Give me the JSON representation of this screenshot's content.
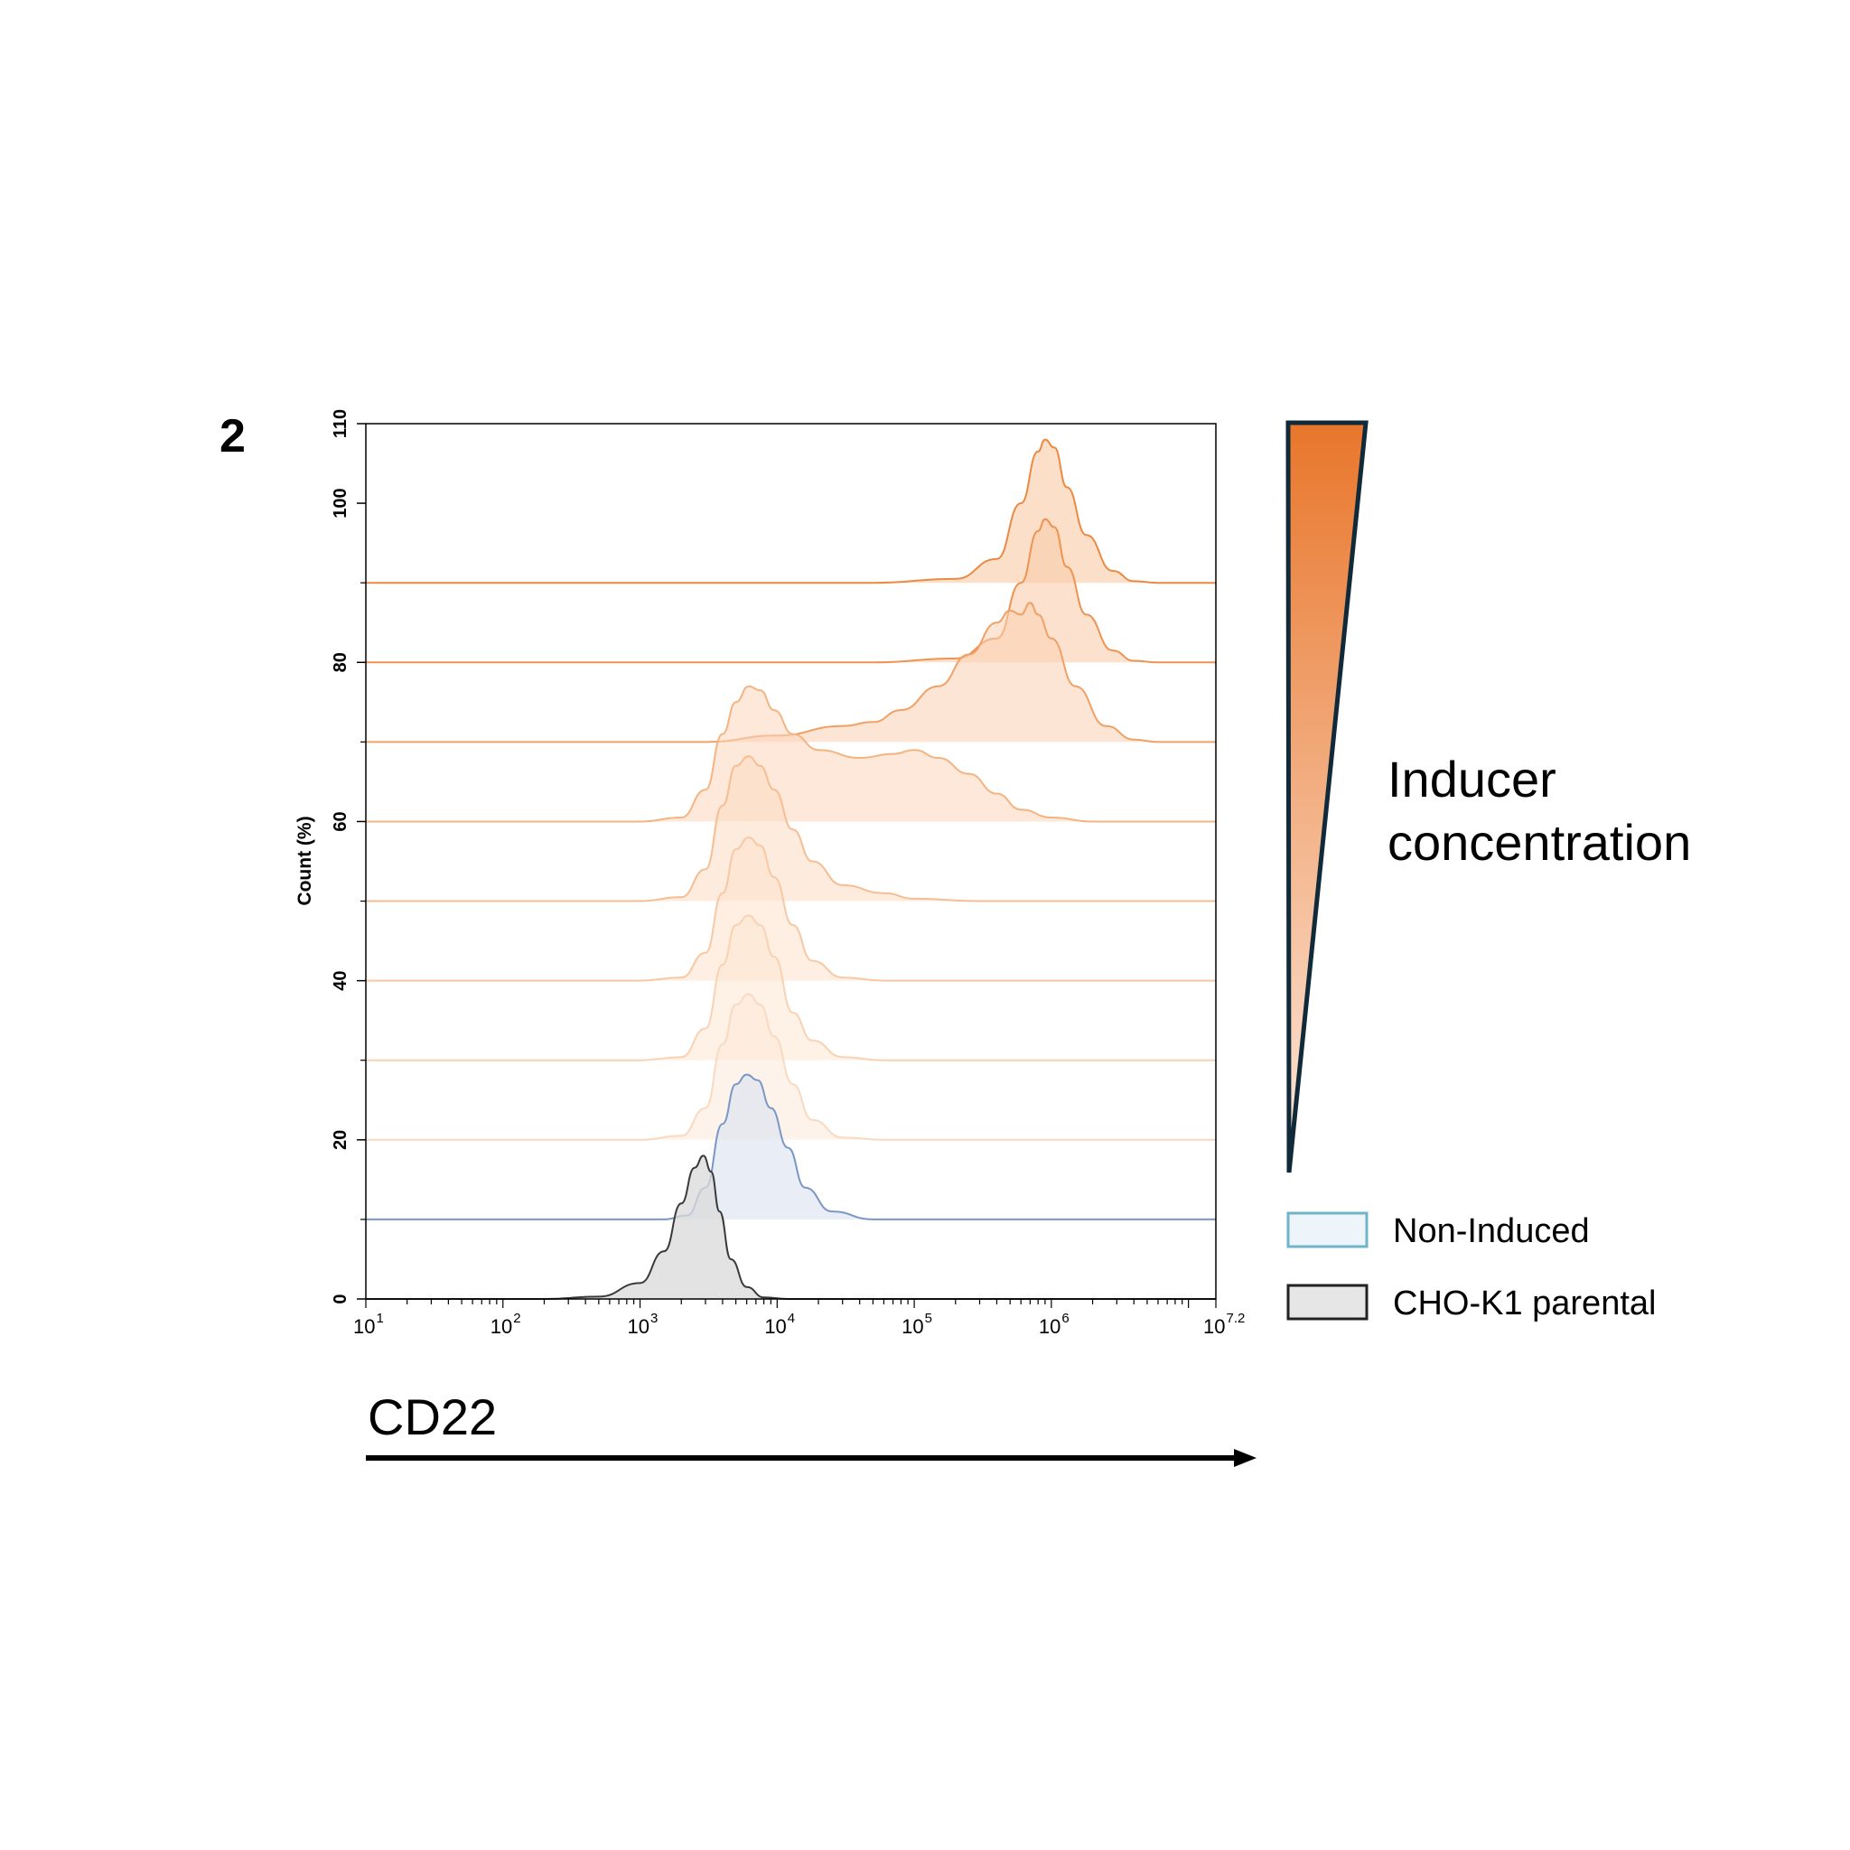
{
  "panel_label": "2",
  "chart_data": {
    "type": "area",
    "subtype": "stacked-offset histogram (flow cytometry overlay)",
    "xlabel": "CD22",
    "ylabel": "Count (%)",
    "x_scale": "log",
    "xlim": [
      10,
      15848932
    ],
    "x_ticks": [
      {
        "value": 10,
        "base": "10",
        "exp": "1"
      },
      {
        "value": 100,
        "base": "10",
        "exp": "2"
      },
      {
        "value": 1000,
        "base": "10",
        "exp": "3"
      },
      {
        "value": 10000,
        "base": "10",
        "exp": "4"
      },
      {
        "value": 100000,
        "base": "10",
        "exp": "5"
      },
      {
        "value": 1000000,
        "base": "10",
        "exp": "6"
      },
      {
        "value": 15848932,
        "base": "10",
        "exp": "7.2"
      }
    ],
    "ylim": [
      0,
      110
    ],
    "y_ticks": [
      0,
      20,
      40,
      60,
      80,
      100,
      110
    ],
    "grid": false,
    "series": [
      {
        "name": "CHO-K1 parental",
        "offset": 0,
        "line_color": "#3a3a3a",
        "fill_color": "#d9d9d9",
        "fill_opacity": 0.75,
        "points": [
          [
            200,
            0
          ],
          [
            500,
            0.3
          ],
          [
            1000,
            2
          ],
          [
            1500,
            6
          ],
          [
            2000,
            12
          ],
          [
            2500,
            16.5
          ],
          [
            2900,
            18
          ],
          [
            3300,
            16
          ],
          [
            3800,
            11
          ],
          [
            4600,
            5
          ],
          [
            6000,
            1.5
          ],
          [
            8000,
            0.2
          ],
          [
            12000,
            0
          ]
        ]
      },
      {
        "name": "Non-Induced",
        "offset": 10,
        "line_color": "#7b97c6",
        "fill_color": "#dbe4f1",
        "fill_opacity": 0.65,
        "points": [
          [
            1500,
            0
          ],
          [
            2200,
            0.5
          ],
          [
            3000,
            4
          ],
          [
            4000,
            12
          ],
          [
            5000,
            17
          ],
          [
            6000,
            18.2
          ],
          [
            7200,
            17.5
          ],
          [
            9000,
            14
          ],
          [
            12000,
            9
          ],
          [
            16000,
            4
          ],
          [
            25000,
            1
          ],
          [
            50000,
            0
          ]
        ]
      },
      {
        "name": "",
        "offset": 20,
        "line_color": "#f9d9bf",
        "fill_color": "#fde9d9",
        "fill_opacity": 0.55,
        "points": [
          [
            1000,
            0
          ],
          [
            2000,
            0.5
          ],
          [
            3000,
            4
          ],
          [
            4000,
            12
          ],
          [
            5000,
            17
          ],
          [
            6200,
            18.3
          ],
          [
            7500,
            17
          ],
          [
            9500,
            13
          ],
          [
            13000,
            7
          ],
          [
            18000,
            2.5
          ],
          [
            30000,
            0.3
          ],
          [
            60000,
            0
          ]
        ]
      },
      {
        "name": "",
        "offset": 30,
        "line_color": "#f8d2b2",
        "fill_color": "#fde5d2",
        "fill_opacity": 0.55,
        "points": [
          [
            1000,
            0
          ],
          [
            2000,
            0.4
          ],
          [
            3000,
            4
          ],
          [
            4000,
            12
          ],
          [
            5000,
            17
          ],
          [
            6200,
            18.2
          ],
          [
            7500,
            17
          ],
          [
            9500,
            13
          ],
          [
            13000,
            6
          ],
          [
            18000,
            2.5
          ],
          [
            30000,
            0.4
          ],
          [
            60000,
            0
          ]
        ]
      },
      {
        "name": "",
        "offset": 40,
        "line_color": "#f7c8a3",
        "fill_color": "#fde1ca",
        "fill_opacity": 0.55,
        "points": [
          [
            1000,
            0
          ],
          [
            2000,
            0.4
          ],
          [
            3000,
            3.5
          ],
          [
            4000,
            11
          ],
          [
            5000,
            16.5
          ],
          [
            6200,
            18
          ],
          [
            7500,
            17
          ],
          [
            9500,
            13
          ],
          [
            13000,
            7
          ],
          [
            18000,
            2.5
          ],
          [
            30000,
            0.4
          ],
          [
            60000,
            0
          ]
        ]
      },
      {
        "name": "",
        "offset": 50,
        "line_color": "#f6bd92",
        "fill_color": "#fcdcc3",
        "fill_opacity": 0.55,
        "points": [
          [
            1000,
            0
          ],
          [
            2000,
            0.5
          ],
          [
            3000,
            4
          ],
          [
            4000,
            12
          ],
          [
            5000,
            17
          ],
          [
            6200,
            18.2
          ],
          [
            7500,
            17
          ],
          [
            9500,
            14
          ],
          [
            13000,
            9
          ],
          [
            18000,
            5
          ],
          [
            30000,
            2
          ],
          [
            60000,
            1
          ],
          [
            100000,
            0.3
          ],
          [
            300000,
            0
          ]
        ]
      },
      {
        "name": "",
        "offset": 60,
        "line_color": "#f4b482",
        "fill_color": "#fbd6ba",
        "fill_opacity": 0.55,
        "points": [
          [
            1000,
            0
          ],
          [
            2000,
            0.5
          ],
          [
            3000,
            4
          ],
          [
            4000,
            11
          ],
          [
            5000,
            15
          ],
          [
            6200,
            17
          ],
          [
            7500,
            16.5
          ],
          [
            9500,
            14
          ],
          [
            13000,
            11
          ],
          [
            20000,
            9
          ],
          [
            40000,
            8
          ],
          [
            70000,
            8.5
          ],
          [
            100000,
            9
          ],
          [
            150000,
            8
          ],
          [
            250000,
            6
          ],
          [
            400000,
            3.5
          ],
          [
            600000,
            1.5
          ],
          [
            1000000,
            0.5
          ],
          [
            2000000,
            0
          ]
        ]
      },
      {
        "name": "",
        "offset": 70,
        "line_color": "#f1a066",
        "fill_color": "#fad0b0",
        "fill_opacity": 0.55,
        "points": [
          [
            3000,
            0
          ],
          [
            10000,
            0.8
          ],
          [
            30000,
            2
          ],
          [
            50000,
            2.5
          ],
          [
            80000,
            4
          ],
          [
            150000,
            7
          ],
          [
            250000,
            11
          ],
          [
            400000,
            15
          ],
          [
            500000,
            16.5
          ],
          [
            600000,
            16
          ],
          [
            700000,
            17.5
          ],
          [
            800000,
            16
          ],
          [
            1000000,
            13
          ],
          [
            1500000,
            7
          ],
          [
            2500000,
            2
          ],
          [
            4000000,
            0.3
          ],
          [
            6000000,
            0
          ]
        ]
      },
      {
        "name": "",
        "offset": 80,
        "line_color": "#ee9352",
        "fill_color": "#f9caa6",
        "fill_opacity": 0.55,
        "points": [
          [
            50000,
            0
          ],
          [
            200000,
            0.5
          ],
          [
            400000,
            3
          ],
          [
            600000,
            10
          ],
          [
            800000,
            16.5
          ],
          [
            900000,
            18
          ],
          [
            1050000,
            17
          ],
          [
            1300000,
            12
          ],
          [
            1800000,
            6
          ],
          [
            2800000,
            1.5
          ],
          [
            4000000,
            0.2
          ],
          [
            6000000,
            0
          ]
        ]
      },
      {
        "name": "",
        "offset": 90,
        "line_color": "#ec8a43",
        "fill_color": "#f8c49c",
        "fill_opacity": 0.55,
        "points": [
          [
            50000,
            0
          ],
          [
            200000,
            0.5
          ],
          [
            400000,
            3
          ],
          [
            600000,
            10
          ],
          [
            800000,
            16.5
          ],
          [
            900000,
            18
          ],
          [
            1050000,
            17
          ],
          [
            1300000,
            12
          ],
          [
            1800000,
            6
          ],
          [
            2800000,
            1.5
          ],
          [
            4000000,
            0.2
          ],
          [
            6000000,
            0
          ]
        ]
      }
    ]
  },
  "gradient_wedge": {
    "label_line1": "Inducer",
    "label_line2": "concentration",
    "color_top": "#e8762b",
    "color_bottom": "#fde9dc",
    "outline_color": "#102a3a"
  },
  "legend": [
    {
      "label": "Non-Induced",
      "fill": "#eef5fa",
      "stroke": "#6fb4c9"
    },
    {
      "label": "CHO-K1 parental",
      "fill": "#e6e6e6",
      "stroke": "#222222"
    }
  ]
}
